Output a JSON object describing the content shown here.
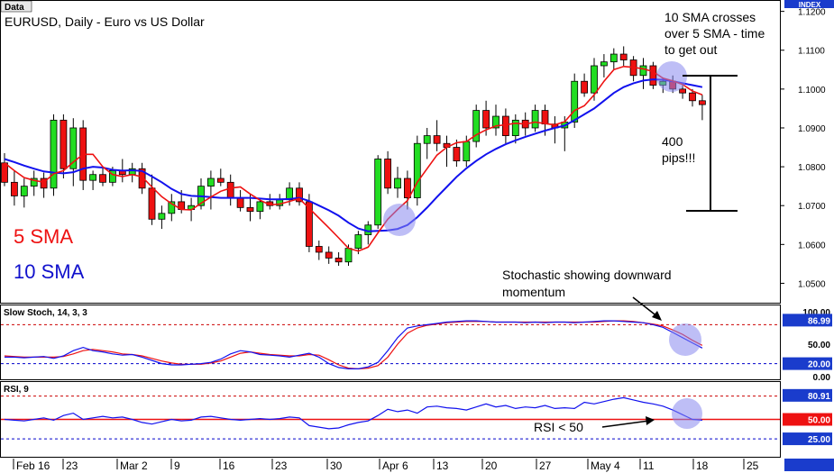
{
  "chart_data": {
    "type": "candlestick",
    "header_tab": "Data",
    "index_tab": "INDEX",
    "title": "EURUSD, Daily - Euro vs US Dollar",
    "price_axis": {
      "min": 1.045,
      "max": 1.122,
      "ticks": [
        "1.1200",
        "1.1100",
        "1.1000",
        "1.0900",
        "1.0800",
        "1.0700",
        "1.0600",
        "1.0500"
      ]
    },
    "x_labels": [
      "Feb 16",
      "23",
      "Mar 2",
      "9",
      "16",
      "23",
      "30",
      "Apr 6",
      "13",
      "20",
      "27",
      "May 4",
      "11",
      "18",
      "25"
    ],
    "candles": [
      {
        "o": 1.081,
        "h": 1.0835,
        "l": 1.075,
        "c": 1.076
      },
      {
        "o": 1.076,
        "h": 1.079,
        "l": 1.07,
        "c": 1.0725
      },
      {
        "o": 1.0725,
        "h": 1.077,
        "l": 1.0695,
        "c": 1.075
      },
      {
        "o": 1.075,
        "h": 1.079,
        "l": 1.0725,
        "c": 1.077
      },
      {
        "o": 1.077,
        "h": 1.0785,
        "l": 1.072,
        "c": 1.0745
      },
      {
        "o": 1.0745,
        "h": 1.0935,
        "l": 1.0725,
        "c": 1.092
      },
      {
        "o": 1.092,
        "h": 1.0935,
        "l": 1.077,
        "c": 1.0795
      },
      {
        "o": 1.0795,
        "h": 1.0925,
        "l": 1.075,
        "c": 1.09
      },
      {
        "o": 1.09,
        "h": 1.092,
        "l": 1.074,
        "c": 1.0765
      },
      {
        "o": 1.0765,
        "h": 1.079,
        "l": 1.074,
        "c": 1.078
      },
      {
        "o": 1.078,
        "h": 1.08,
        "l": 1.075,
        "c": 1.076
      },
      {
        "o": 1.076,
        "h": 1.08,
        "l": 1.075,
        "c": 1.079
      },
      {
        "o": 1.079,
        "h": 1.082,
        "l": 1.076,
        "c": 1.078
      },
      {
        "o": 1.078,
        "h": 1.081,
        "l": 1.076,
        "c": 1.0795
      },
      {
        "o": 1.0795,
        "h": 1.081,
        "l": 1.073,
        "c": 1.0745
      },
      {
        "o": 1.0745,
        "h": 1.078,
        "l": 1.065,
        "c": 1.0665
      },
      {
        "o": 1.0665,
        "h": 1.07,
        "l": 1.064,
        "c": 1.068
      },
      {
        "o": 1.068,
        "h": 1.073,
        "l": 1.066,
        "c": 1.071
      },
      {
        "o": 1.071,
        "h": 1.074,
        "l": 1.068,
        "c": 1.069
      },
      {
        "o": 1.069,
        "h": 1.072,
        "l": 1.066,
        "c": 1.07
      },
      {
        "o": 1.07,
        "h": 1.077,
        "l": 1.069,
        "c": 1.075
      },
      {
        "o": 1.075,
        "h": 1.079,
        "l": 1.069,
        "c": 1.077
      },
      {
        "o": 1.077,
        "h": 1.0795,
        "l": 1.075,
        "c": 1.076
      },
      {
        "o": 1.076,
        "h": 1.078,
        "l": 1.07,
        "c": 1.072
      },
      {
        "o": 1.072,
        "h": 1.074,
        "l": 1.0685,
        "c": 1.0695
      },
      {
        "o": 1.0695,
        "h": 1.073,
        "l": 1.066,
        "c": 1.0685
      },
      {
        "o": 1.0685,
        "h": 1.072,
        "l": 1.0665,
        "c": 1.071
      },
      {
        "o": 1.071,
        "h": 1.073,
        "l": 1.069,
        "c": 1.07
      },
      {
        "o": 1.07,
        "h": 1.073,
        "l": 1.069,
        "c": 1.0715
      },
      {
        "o": 1.0715,
        "h": 1.076,
        "l": 1.07,
        "c": 1.0745
      },
      {
        "o": 1.0745,
        "h": 1.076,
        "l": 1.07,
        "c": 1.071
      },
      {
        "o": 1.071,
        "h": 1.073,
        "l": 1.058,
        "c": 1.0595
      },
      {
        "o": 1.0595,
        "h": 1.061,
        "l": 1.056,
        "c": 1.058
      },
      {
        "o": 1.058,
        "h": 1.0595,
        "l": 1.055,
        "c": 1.0565
      },
      {
        "o": 1.0565,
        "h": 1.058,
        "l": 1.0545,
        "c": 1.0555
      },
      {
        "o": 1.0555,
        "h": 1.06,
        "l": 1.0545,
        "c": 1.059
      },
      {
        "o": 1.059,
        "h": 1.0635,
        "l": 1.0575,
        "c": 1.0625
      },
      {
        "o": 1.0625,
        "h": 1.066,
        "l": 1.06,
        "c": 1.065
      },
      {
        "o": 1.065,
        "h": 1.083,
        "l": 1.064,
        "c": 1.082
      },
      {
        "o": 1.082,
        "h": 1.084,
        "l": 1.073,
        "c": 1.0745
      },
      {
        "o": 1.0745,
        "h": 1.08,
        "l": 1.072,
        "c": 1.077
      },
      {
        "o": 1.077,
        "h": 1.079,
        "l": 1.069,
        "c": 1.072
      },
      {
        "o": 1.072,
        "h": 1.088,
        "l": 1.07,
        "c": 1.086
      },
      {
        "o": 1.086,
        "h": 1.09,
        "l": 1.082,
        "c": 1.088
      },
      {
        "o": 1.088,
        "h": 1.092,
        "l": 1.084,
        "c": 1.086
      },
      {
        "o": 1.086,
        "h": 1.088,
        "l": 1.08,
        "c": 1.085
      },
      {
        "o": 1.085,
        "h": 1.087,
        "l": 1.08,
        "c": 1.0815
      },
      {
        "o": 1.0815,
        "h": 1.088,
        "l": 1.08,
        "c": 1.0865
      },
      {
        "o": 1.0865,
        "h": 1.096,
        "l": 1.085,
        "c": 1.0945
      },
      {
        "o": 1.0945,
        "h": 1.097,
        "l": 1.088,
        "c": 1.09
      },
      {
        "o": 1.09,
        "h": 1.096,
        "l": 1.088,
        "c": 1.093
      },
      {
        "o": 1.093,
        "h": 1.095,
        "l": 1.086,
        "c": 1.088
      },
      {
        "o": 1.088,
        "h": 1.0935,
        "l": 1.086,
        "c": 1.092
      },
      {
        "o": 1.092,
        "h": 1.094,
        "l": 1.088,
        "c": 1.09
      },
      {
        "o": 1.09,
        "h": 1.096,
        "l": 1.089,
        "c": 1.0945
      },
      {
        "o": 1.0945,
        "h": 1.096,
        "l": 1.088,
        "c": 1.091
      },
      {
        "o": 1.091,
        "h": 1.093,
        "l": 1.086,
        "c": 1.09
      },
      {
        "o": 1.09,
        "h": 1.093,
        "l": 1.084,
        "c": 1.0915
      },
      {
        "o": 1.0915,
        "h": 1.104,
        "l": 1.09,
        "c": 1.102
      },
      {
        "o": 1.102,
        "h": 1.104,
        "l": 1.098,
        "c": 1.099
      },
      {
        "o": 1.099,
        "h": 1.108,
        "l": 1.097,
        "c": 1.106
      },
      {
        "o": 1.106,
        "h": 1.109,
        "l": 1.103,
        "c": 1.107
      },
      {
        "o": 1.107,
        "h": 1.1105,
        "l": 1.105,
        "c": 1.109
      },
      {
        "o": 1.109,
        "h": 1.111,
        "l": 1.106,
        "c": 1.1075
      },
      {
        "o": 1.1075,
        "h": 1.1085,
        "l": 1.102,
        "c": 1.1035
      },
      {
        "o": 1.1035,
        "h": 1.108,
        "l": 1.1,
        "c": 1.106
      },
      {
        "o": 1.106,
        "h": 1.107,
        "l": 1.1,
        "c": 1.101
      },
      {
        "o": 1.101,
        "h": 1.103,
        "l": 1.099,
        "c": 1.102
      },
      {
        "o": 1.102,
        "h": 1.1035,
        "l": 1.099,
        "c": 1.1
      },
      {
        "o": 1.1,
        "h": 1.101,
        "l": 1.0975,
        "c": 1.099
      },
      {
        "o": 1.099,
        "h": 1.1,
        "l": 1.0955,
        "c": 1.097
      },
      {
        "o": 1.097,
        "h": 1.0985,
        "l": 1.092,
        "c": 1.096
      }
    ],
    "sma5": [
      1.081,
      1.079,
      1.0772,
      1.0765,
      1.076,
      1.0782,
      1.079,
      1.0812,
      1.0832,
      1.0832,
      1.08,
      1.078,
      1.0775,
      1.078,
      1.0774,
      1.0748,
      1.0723,
      1.0705,
      1.069,
      1.0689,
      1.0706,
      1.0722,
      1.0737,
      1.0745,
      1.0748,
      1.073,
      1.0714,
      1.0702,
      1.0704,
      1.0711,
      1.0718,
      1.0693,
      1.0668,
      1.0643,
      1.0617,
      1.059,
      1.0583,
      1.0593,
      1.063,
      1.0665,
      1.069,
      1.0713,
      1.076,
      1.0795,
      1.083,
      1.085,
      1.0862,
      1.0865,
      1.0882,
      1.0895,
      1.0905,
      1.0908,
      1.0912,
      1.091,
      1.0915,
      1.0911,
      1.0908,
      1.0916,
      1.0945,
      1.0957,
      1.0985,
      1.102,
      1.105,
      1.1058,
      1.1056,
      1.1052,
      1.1045,
      1.1028,
      1.1021,
      1.1012,
      1.0995,
      1.0985
    ],
    "sma10": [
      1.082,
      1.0812,
      1.0803,
      1.0795,
      1.0788,
      1.0785,
      1.0783,
      1.0786,
      1.0795,
      1.08,
      1.0798,
      1.0792,
      1.079,
      1.0791,
      1.0789,
      1.0775,
      1.076,
      1.0743,
      1.073,
      1.0725,
      1.0724,
      1.0722,
      1.072,
      1.072,
      1.072,
      1.072,
      1.0718,
      1.0716,
      1.0716,
      1.0717,
      1.072,
      1.0712,
      1.07,
      1.0688,
      1.0674,
      1.0656,
      1.0641,
      1.0634,
      1.0635,
      1.0636,
      1.064,
      1.065,
      1.067,
      1.0695,
      1.0722,
      1.0748,
      1.0774,
      1.0796,
      1.0815,
      1.0832,
      1.0846,
      1.0858,
      1.0868,
      1.0877,
      1.0885,
      1.0893,
      1.09,
      1.0906,
      1.092,
      1.0935,
      1.095,
      1.097,
      1.099,
      1.1005,
      1.1015,
      1.1022,
      1.1025,
      1.1024,
      1.102,
      1.1015,
      1.101,
      1.1005
    ],
    "sma_labels": [
      {
        "text": "5 SMA",
        "color": "#ee1111"
      },
      {
        "text": "10 SMA",
        "color": "#1111cc"
      }
    ],
    "annotations": {
      "cross_note": [
        "10 SMA crosses",
        "over 5 SMA - time",
        "to get out"
      ],
      "pips_note": [
        "400",
        "pips!!!"
      ],
      "stoch_note": [
        "Stochastic showing downward",
        "momentum"
      ],
      "rsi_note": "RSI < 50"
    },
    "stoch": {
      "title": "Slow Stoch, 14, 3, 3",
      "k": [
        30,
        30,
        29,
        30,
        31,
        28,
        32,
        40,
        45,
        40,
        38,
        35,
        33,
        34,
        30,
        25,
        20,
        18,
        18,
        19,
        20,
        22,
        27,
        35,
        40,
        38,
        34,
        33,
        32,
        30,
        33,
        36,
        30,
        20,
        14,
        12,
        12,
        15,
        22,
        40,
        60,
        75,
        78,
        80,
        82,
        84,
        85,
        86,
        86,
        85,
        84,
        84,
        84,
        83,
        84,
        83,
        84,
        84,
        83,
        84,
        85,
        86,
        86,
        85,
        84,
        83,
        80,
        76,
        68,
        60,
        52,
        44
      ],
      "d": [
        32,
        31,
        30,
        30,
        30,
        30,
        31,
        35,
        40,
        42,
        40,
        38,
        35,
        34,
        32,
        28,
        24,
        21,
        19,
        19,
        19,
        21,
        24,
        30,
        36,
        38,
        36,
        34,
        33,
        32,
        32,
        34,
        33,
        26,
        18,
        13,
        12,
        13,
        17,
        30,
        50,
        67,
        75,
        79,
        81,
        83,
        84,
        85,
        85,
        85,
        84,
        84,
        84,
        84,
        84,
        84,
        84,
        84,
        84,
        84,
        84,
        85,
        86,
        86,
        85,
        83,
        81,
        78,
        72,
        65,
        56,
        48
      ],
      "axis_labels": [
        "100.00",
        "50.00",
        "20.00",
        "0.00"
      ],
      "current_value": "86.99",
      "current_label": "20.00"
    },
    "rsi": {
      "title": "RSI, 9",
      "values": [
        50,
        49,
        48,
        50,
        52,
        49,
        55,
        58,
        50,
        52,
        54,
        52,
        53,
        50,
        46,
        44,
        47,
        50,
        48,
        49,
        53,
        54,
        52,
        50,
        49,
        50,
        51,
        50,
        51,
        53,
        52,
        42,
        40,
        38,
        39,
        43,
        46,
        48,
        55,
        63,
        60,
        62,
        58,
        66,
        67,
        65,
        64,
        62,
        66,
        70,
        66,
        68,
        64,
        66,
        65,
        68,
        64,
        65,
        64,
        72,
        70,
        73,
        76,
        78,
        75,
        72,
        70,
        67,
        62,
        56,
        50,
        49
      ],
      "axis_labels": [
        "80.91",
        "50.00",
        "25.00"
      ],
      "current_value": "50.00"
    },
    "colors": {
      "bull": "#22dd22",
      "bear": "#ee1111",
      "sma5": "#ee1111",
      "sma10": "#1111ee",
      "highlight": "#8888ee"
    }
  }
}
